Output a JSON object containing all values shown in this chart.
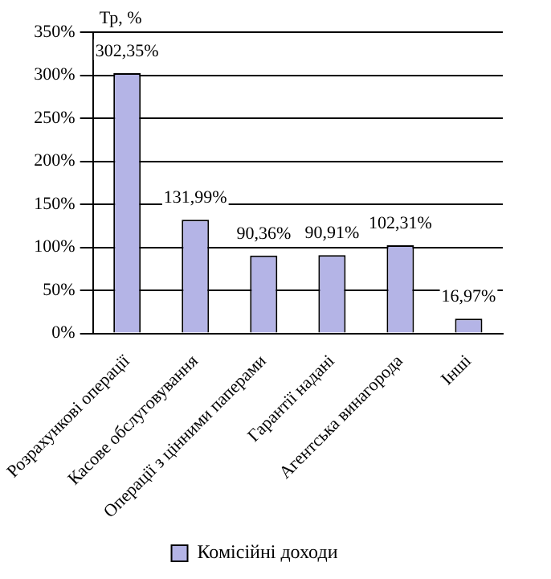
{
  "chart_data": {
    "type": "bar",
    "ylabel": "Тр, %",
    "categories": [
      "Розрахункові операції",
      "Касове обслуговування",
      "Операції з цінними паперами",
      "Гарантії надані",
      "Агентська винагорода",
      "Інші"
    ],
    "series": [
      {
        "name": "Комісійні доходи",
        "color": "#b4b4e6",
        "values": [
          302.35,
          131.99,
          90.36,
          90.91,
          102.31,
          16.97
        ],
        "value_labels": [
          "302,35%",
          "131,99%",
          "90,36%",
          "90,91%",
          "102,31%",
          "16,97%"
        ]
      }
    ],
    "ylim": [
      0,
      350
    ],
    "yticks": [
      {
        "value": 0,
        "label": "0%"
      },
      {
        "value": 50,
        "label": "50%"
      },
      {
        "value": 100,
        "label": "100%"
      },
      {
        "value": 150,
        "label": "150%"
      },
      {
        "value": 200,
        "label": "200%"
      },
      {
        "value": 250,
        "label": "250%"
      },
      {
        "value": 300,
        "label": "300%"
      },
      {
        "value": 350,
        "label": "350%"
      }
    ],
    "grid": "y",
    "legend": "bottom"
  }
}
